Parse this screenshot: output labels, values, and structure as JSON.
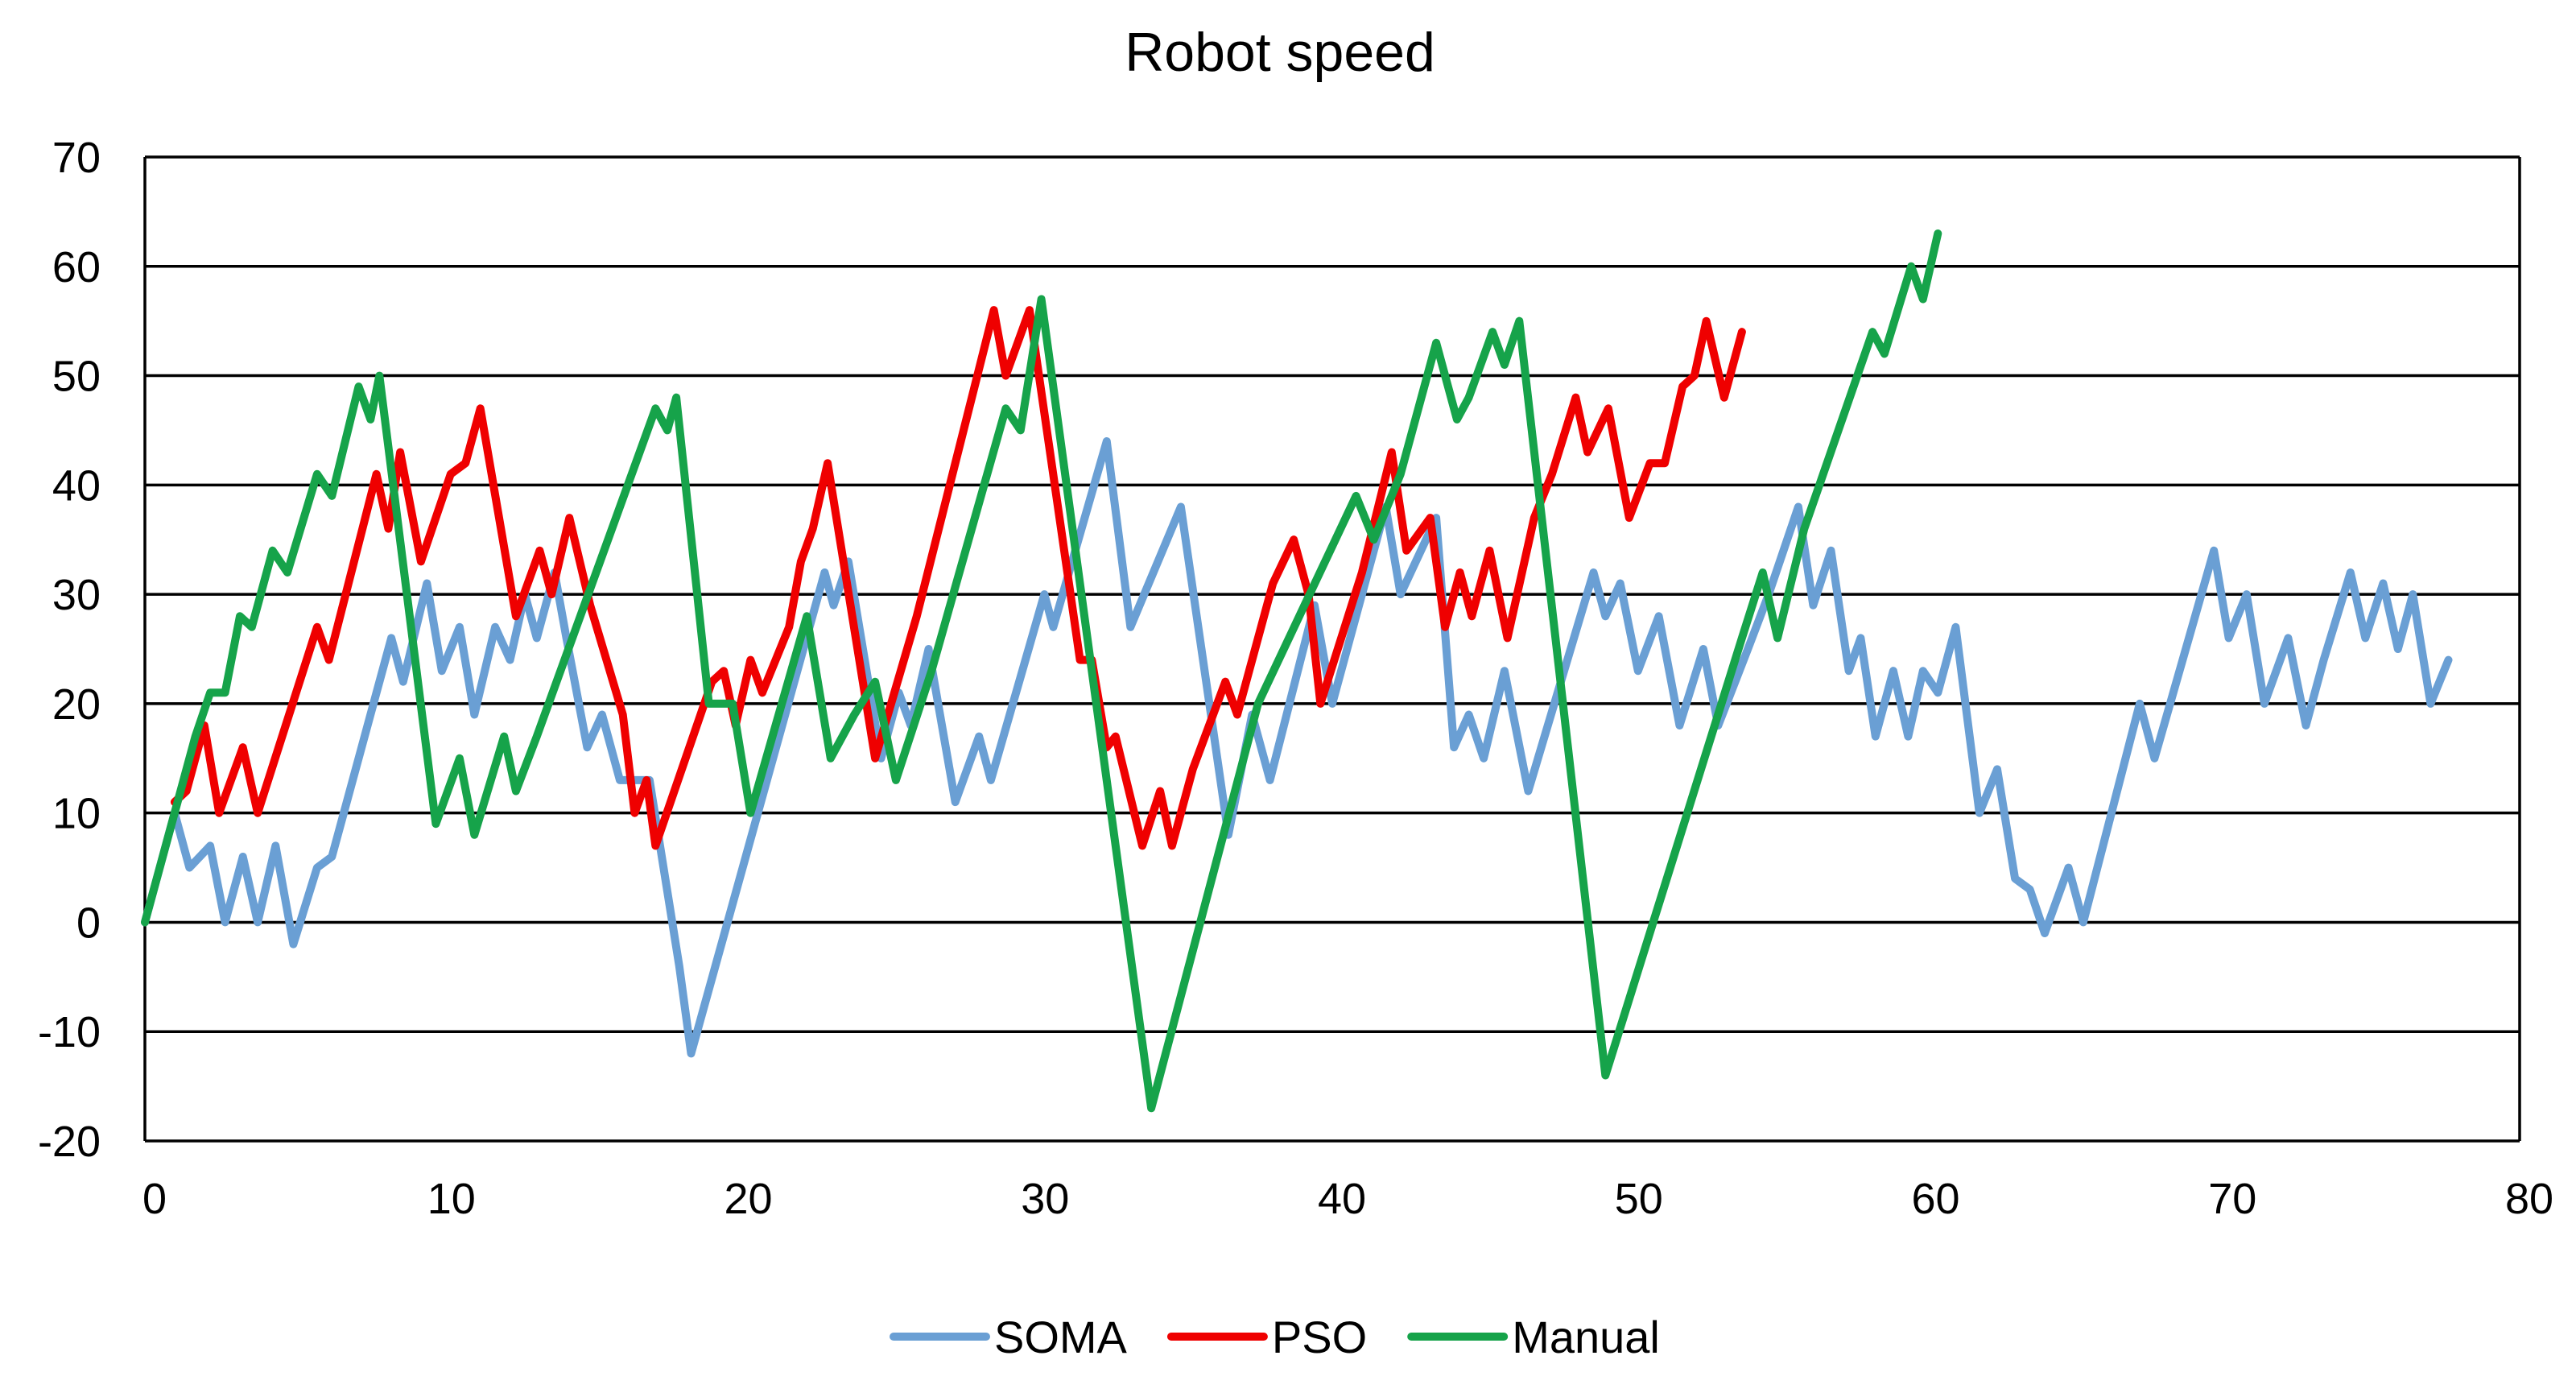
{
  "chart_data": {
    "type": "line",
    "title": "Robot speed",
    "xlabel": "",
    "ylabel": "",
    "xlim": [
      0,
      80
    ],
    "ylim": [
      -20,
      70
    ],
    "xticks": [
      0,
      10,
      20,
      30,
      40,
      50,
      60,
      70,
      80
    ],
    "yticks": [
      -20,
      -10,
      0,
      10,
      20,
      30,
      40,
      50,
      60,
      70
    ],
    "grid": "horizontal",
    "legend": "bottom",
    "series": [
      {
        "name": "SOMA",
        "color": "#6a9fd4",
        "points": [
          [
            0,
            0
          ],
          [
            1,
            10
          ],
          [
            1.5,
            5
          ],
          [
            2.2,
            7
          ],
          [
            2.7,
            0
          ],
          [
            3.3,
            6
          ],
          [
            3.8,
            0
          ],
          [
            4.4,
            7
          ],
          [
            5,
            -2
          ],
          [
            5.8,
            5
          ],
          [
            6.3,
            6
          ],
          [
            8.3,
            26
          ],
          [
            8.7,
            22
          ],
          [
            9.5,
            31
          ],
          [
            10,
            23
          ],
          [
            10.6,
            27
          ],
          [
            11.1,
            19
          ],
          [
            11.8,
            27
          ],
          [
            12.3,
            24
          ],
          [
            12.8,
            30
          ],
          [
            13.2,
            26
          ],
          [
            13.8,
            32
          ],
          [
            14.2,
            26
          ],
          [
            14.9,
            16
          ],
          [
            15.4,
            19
          ],
          [
            16,
            13
          ],
          [
            17,
            13
          ],
          [
            18,
            -4
          ],
          [
            18.4,
            -12
          ],
          [
            22.9,
            32
          ],
          [
            23.2,
            29
          ],
          [
            23.7,
            33
          ],
          [
            24.8,
            15
          ],
          [
            25.4,
            21
          ],
          [
            25.8,
            18
          ],
          [
            26.4,
            25
          ],
          [
            27.3,
            11
          ],
          [
            28.1,
            17
          ],
          [
            28.5,
            13
          ],
          [
            30.3,
            30
          ],
          [
            30.6,
            27
          ],
          [
            32.4,
            44
          ],
          [
            33.2,
            27
          ],
          [
            34.9,
            38
          ],
          [
            36.5,
            8
          ],
          [
            37.3,
            19
          ],
          [
            37.9,
            13
          ],
          [
            39.4,
            29
          ],
          [
            40,
            20
          ],
          [
            41.8,
            38
          ],
          [
            42.3,
            30
          ],
          [
            43.5,
            37
          ],
          [
            44.1,
            16
          ],
          [
            44.6,
            19
          ],
          [
            45.1,
            15
          ],
          [
            45.8,
            23
          ],
          [
            46.6,
            12
          ],
          [
            48.8,
            32
          ],
          [
            49.2,
            28
          ],
          [
            49.7,
            31
          ],
          [
            50.3,
            23
          ],
          [
            51,
            28
          ],
          [
            51.7,
            18
          ],
          [
            52.5,
            25
          ],
          [
            53,
            18
          ],
          [
            54,
            25
          ],
          [
            54.7,
            30
          ],
          [
            55.7,
            38
          ],
          [
            56.2,
            29
          ],
          [
            56.8,
            34
          ],
          [
            57.4,
            23
          ],
          [
            57.8,
            26
          ],
          [
            58.3,
            17
          ],
          [
            58.9,
            23
          ],
          [
            59.4,
            17
          ],
          [
            59.9,
            23
          ],
          [
            60.4,
            21
          ],
          [
            61,
            27
          ],
          [
            61.8,
            10
          ],
          [
            62.4,
            14
          ],
          [
            63,
            4
          ],
          [
            63.5,
            3
          ],
          [
            64,
            -1
          ],
          [
            64.8,
            5
          ],
          [
            65.3,
            0
          ],
          [
            67.2,
            20
          ],
          [
            67.7,
            15
          ],
          [
            69.7,
            34
          ],
          [
            70.2,
            26
          ],
          [
            70.8,
            30
          ],
          [
            71.4,
            20
          ],
          [
            72.2,
            26
          ],
          [
            72.8,
            18
          ],
          [
            73.4,
            24
          ],
          [
            74.3,
            32
          ],
          [
            74.8,
            26
          ],
          [
            75.4,
            31
          ],
          [
            75.9,
            25
          ],
          [
            76.4,
            30
          ],
          [
            77,
            20
          ],
          [
            77.6,
            24
          ]
        ]
      },
      {
        "name": "PSO",
        "color": "#ef0000",
        "points": [
          [
            1,
            11
          ],
          [
            1.4,
            12
          ],
          [
            2,
            18
          ],
          [
            2.5,
            10
          ],
          [
            3.3,
            16
          ],
          [
            3.8,
            10
          ],
          [
            5.8,
            27
          ],
          [
            6.2,
            24
          ],
          [
            7.8,
            41
          ],
          [
            8.2,
            36
          ],
          [
            8.6,
            43
          ],
          [
            9.3,
            33
          ],
          [
            10.3,
            41
          ],
          [
            10.8,
            42
          ],
          [
            11.3,
            47
          ],
          [
            12.5,
            28
          ],
          [
            13.3,
            34
          ],
          [
            13.7,
            30
          ],
          [
            14.3,
            37
          ],
          [
            15,
            29
          ],
          [
            16.1,
            19
          ],
          [
            16.5,
            10
          ],
          [
            16.9,
            13
          ],
          [
            17.2,
            7
          ],
          [
            19.1,
            22
          ],
          [
            19.5,
            23
          ],
          [
            19.9,
            18
          ],
          [
            20.4,
            24
          ],
          [
            20.8,
            21
          ],
          [
            21.7,
            27
          ],
          [
            22.1,
            33
          ],
          [
            22.5,
            36
          ],
          [
            23,
            42
          ],
          [
            24.6,
            15
          ],
          [
            26,
            28
          ],
          [
            28.6,
            56
          ],
          [
            29,
            50
          ],
          [
            29.8,
            56
          ],
          [
            31.5,
            24
          ],
          [
            31.9,
            24
          ],
          [
            32.4,
            16
          ],
          [
            32.7,
            17
          ],
          [
            33.6,
            7
          ],
          [
            34.2,
            12
          ],
          [
            34.6,
            7
          ],
          [
            35.3,
            14
          ],
          [
            36.4,
            22
          ],
          [
            36.8,
            19
          ],
          [
            38,
            31
          ],
          [
            38.7,
            35
          ],
          [
            39.2,
            30
          ],
          [
            39.6,
            20
          ],
          [
            41,
            32
          ],
          [
            42,
            43
          ],
          [
            42.5,
            34
          ],
          [
            43.3,
            37
          ],
          [
            43.8,
            27
          ],
          [
            44.3,
            32
          ],
          [
            44.7,
            28
          ],
          [
            45.3,
            34
          ],
          [
            45.9,
            26
          ],
          [
            46.8,
            37
          ],
          [
            47.4,
            41
          ],
          [
            48.2,
            48
          ],
          [
            48.6,
            43
          ],
          [
            49.3,
            47
          ],
          [
            50,
            37
          ],
          [
            50.7,
            42
          ],
          [
            51.2,
            42
          ],
          [
            51.8,
            49
          ],
          [
            52.2,
            50
          ],
          [
            52.6,
            55
          ],
          [
            53.2,
            48
          ],
          [
            53.8,
            54
          ]
        ]
      },
      {
        "name": "Manual",
        "color": "#16a34a",
        "points": [
          [
            0,
            0
          ],
          [
            1.7,
            17
          ],
          [
            2.2,
            21
          ],
          [
            2.7,
            21
          ],
          [
            3.2,
            28
          ],
          [
            3.6,
            27
          ],
          [
            4.3,
            34
          ],
          [
            4.8,
            32
          ],
          [
            5.8,
            41
          ],
          [
            6.3,
            39
          ],
          [
            7.2,
            49
          ],
          [
            7.6,
            46
          ],
          [
            7.9,
            50
          ],
          [
            9.8,
            9
          ],
          [
            10.6,
            15
          ],
          [
            11.1,
            8
          ],
          [
            12.1,
            17
          ],
          [
            12.5,
            12
          ],
          [
            13.2,
            17
          ],
          [
            17.2,
            47
          ],
          [
            17.6,
            45
          ],
          [
            17.9,
            48
          ],
          [
            19,
            20
          ],
          [
            19.8,
            20
          ],
          [
            20.4,
            10
          ],
          [
            22.3,
            28
          ],
          [
            23.1,
            15
          ],
          [
            23.9,
            19
          ],
          [
            24.6,
            22
          ],
          [
            25.3,
            13
          ],
          [
            26.5,
            23
          ],
          [
            29,
            47
          ],
          [
            29.5,
            45
          ],
          [
            30.2,
            57
          ],
          [
            33.9,
            -17
          ],
          [
            37.5,
            20
          ],
          [
            40.8,
            39
          ],
          [
            41.4,
            35
          ],
          [
            42.3,
            41
          ],
          [
            43.5,
            53
          ],
          [
            44.2,
            46
          ],
          [
            44.6,
            48
          ],
          [
            45.4,
            54
          ],
          [
            45.8,
            51
          ],
          [
            46.3,
            55
          ],
          [
            49.2,
            -14
          ],
          [
            53.8,
            26
          ],
          [
            54.5,
            32
          ],
          [
            55,
            26
          ],
          [
            55.9,
            36
          ],
          [
            58.2,
            54
          ],
          [
            58.6,
            52
          ],
          [
            59.5,
            60
          ],
          [
            59.9,
            57
          ],
          [
            60.4,
            63
          ]
        ]
      }
    ]
  }
}
